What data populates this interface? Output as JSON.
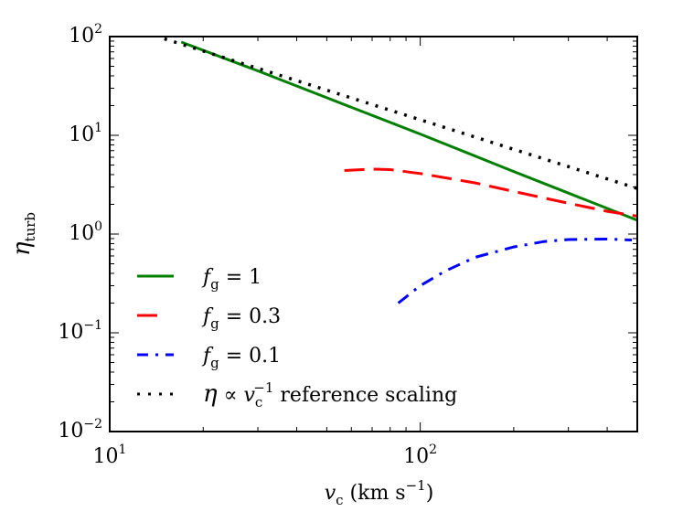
{
  "chart_data": {
    "type": "line",
    "title": "",
    "xlabel": {
      "base": "v",
      "sub": "c",
      "rest": " (km s",
      "sup": "−1",
      "close": ")"
    },
    "ylabel": {
      "base": "η",
      "sub": "turb"
    },
    "xscale": "log",
    "yscale": "log",
    "xlim": [
      10,
      500
    ],
    "ylim": [
      0.01,
      100
    ],
    "xticks": [
      {
        "value": 10,
        "base": "10",
        "exp": "1"
      },
      {
        "value": 100,
        "base": "10",
        "exp": "2"
      }
    ],
    "yticks": [
      {
        "value": 0.01,
        "base": "10",
        "exp": "−2"
      },
      {
        "value": 0.1,
        "base": "10",
        "exp": "−1"
      },
      {
        "value": 1,
        "base": "10",
        "exp": "0"
      },
      {
        "value": 10,
        "base": "10",
        "exp": "1"
      },
      {
        "value": 100,
        "base": "10",
        "exp": "2"
      }
    ],
    "legend_position": "lower-left",
    "series": [
      {
        "name": "fg=1",
        "legend": {
          "base": "f",
          "sub": "g",
          "rest": " = 1"
        },
        "color": "#007f00",
        "style": "solid",
        "x": [
          17,
          30,
          50,
          100,
          200,
          300,
          500
        ],
        "y": [
          88,
          45,
          24,
          10.3,
          4.3,
          2.6,
          1.38
        ]
      },
      {
        "name": "fg=0.3",
        "legend": {
          "base": "f",
          "sub": "g",
          "rest": " = 0.3"
        },
        "color": "#ff0000",
        "style": "dashed",
        "x": [
          57,
          70,
          80,
          100,
          150,
          200,
          300,
          400,
          500
        ],
        "y": [
          4.4,
          4.55,
          4.5,
          4.1,
          3.3,
          2.7,
          2.05,
          1.7,
          1.52
        ]
      },
      {
        "name": "fg=0.1",
        "legend": {
          "base": "f",
          "sub": "g",
          "rest": " = 0.1"
        },
        "color": "#0000ff",
        "style": "dashdot",
        "x": [
          85,
          100,
          120,
          150,
          200,
          250,
          300,
          400,
          480
        ],
        "y": [
          0.2,
          0.3,
          0.42,
          0.58,
          0.74,
          0.84,
          0.88,
          0.89,
          0.87
        ]
      },
      {
        "name": "reference",
        "legend": {
          "base": "η ∝ v",
          "sub": "c",
          "sup": "−1",
          "rest": " reference scaling"
        },
        "color": "#000000",
        "style": "dotted",
        "x": [
          15,
          500
        ],
        "y": [
          95,
          2.9
        ]
      }
    ]
  }
}
